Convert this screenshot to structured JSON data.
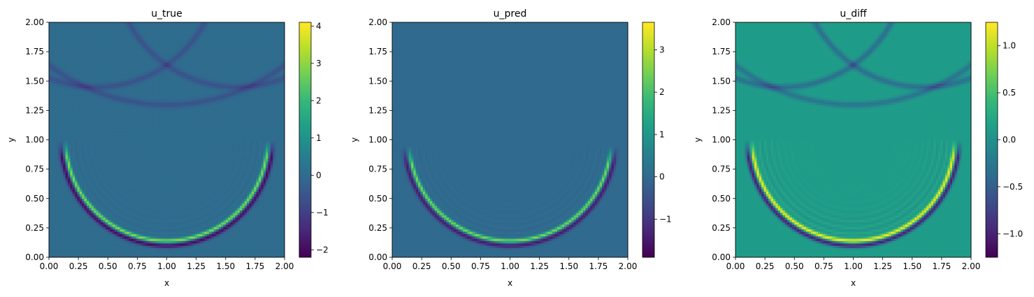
{
  "colors": {
    "viridis": [
      "#440154",
      "#482878",
      "#3e4a89",
      "#31688e",
      "#26828e",
      "#1f9e89",
      "#35b779",
      "#6ece58",
      "#b5de2b",
      "#fde725"
    ]
  },
  "chart_data": [
    {
      "type": "heatmap",
      "title": "u_true",
      "xlabel": "x",
      "ylabel": "y",
      "xlim": [
        0,
        2
      ],
      "ylim": [
        0,
        2
      ],
      "x_ticks": [
        "0.00",
        "0.25",
        "0.50",
        "0.75",
        "1.00",
        "1.25",
        "1.50",
        "1.75",
        "2.00"
      ],
      "y_ticks": [
        "0.00",
        "0.25",
        "0.50",
        "0.75",
        "1.00",
        "1.25",
        "1.50",
        "1.75",
        "2.00"
      ],
      "colormap": "viridis",
      "colorbar": {
        "min": -2.2,
        "max": 4.1,
        "ticks": [
          -2,
          -1,
          0,
          1,
          2,
          3,
          4
        ],
        "tick_labels": [
          "−2",
          "−1",
          "0",
          "1",
          "2",
          "3",
          "4"
        ]
      },
      "field": {
        "background": 0.0,
        "front": {
          "center": [
            1.0,
            1.0
          ],
          "radius": 0.87,
          "visible_below_y": 1.0,
          "peak": 3.0,
          "trough": -2.0
        },
        "faint_arc": {
          "center": [
            1.0,
            1.0
          ],
          "radius": 0.3,
          "value": -0.6
        },
        "reflections": [
          {
            "center": [
              0.4,
              2.5
            ],
            "radius": 1.05,
            "value": -0.6
          },
          {
            "center": [
              1.6,
              2.5
            ],
            "radius": 1.05,
            "value": -0.6
          },
          {
            "center": [
              1.0,
              2.95
            ],
            "radius": 1.65,
            "value": -0.6
          }
        ]
      }
    },
    {
      "type": "heatmap",
      "title": "u_pred",
      "xlabel": "x",
      "ylabel": "y",
      "xlim": [
        0,
        2
      ],
      "ylim": [
        0,
        2
      ],
      "x_ticks": [
        "0.00",
        "0.25",
        "0.50",
        "0.75",
        "1.00",
        "1.25",
        "1.50",
        "1.75",
        "2.00"
      ],
      "y_ticks": [
        "0.00",
        "0.25",
        "0.50",
        "0.75",
        "1.00",
        "1.25",
        "1.50",
        "1.75",
        "2.00"
      ],
      "colormap": "viridis",
      "colorbar": {
        "min": -1.9,
        "max": 3.65,
        "ticks": [
          -1,
          0,
          1,
          2,
          3
        ],
        "tick_labels": [
          "−1",
          "0",
          "1",
          "2",
          "3"
        ]
      },
      "field": {
        "background": 0.0,
        "front": {
          "center": [
            1.0,
            1.0
          ],
          "radius": 0.87,
          "visible_below_y": 0.95,
          "peak": 2.6,
          "trough": -1.5
        },
        "reflections": []
      }
    },
    {
      "type": "heatmap",
      "title": "u_diff",
      "xlabel": "x",
      "ylabel": "y",
      "xlim": [
        0,
        2
      ],
      "ylim": [
        0,
        2
      ],
      "x_ticks": [
        "0.00",
        "0.25",
        "0.50",
        "0.75",
        "1.00",
        "1.25",
        "1.50",
        "1.75",
        "2.00"
      ],
      "y_ticks": [
        "0.00",
        "0.25",
        "0.50",
        "0.75",
        "1.00",
        "1.25",
        "1.50",
        "1.75",
        "2.00"
      ],
      "colormap": "viridis",
      "colorbar": {
        "min": -1.25,
        "max": 1.25,
        "ticks": [
          -1.0,
          -0.5,
          0.0,
          0.5,
          1.0
        ],
        "tick_labels": [
          "−1.0",
          "−0.5",
          "0.0",
          "0.5",
          "1.0"
        ]
      },
      "field": {
        "background": 0.12,
        "front": {
          "center": [
            1.0,
            1.0
          ],
          "radius": 0.87,
          "visible_below_y": 1.0,
          "peak": 1.1,
          "trough": -1.15
        },
        "faint_arc": {
          "center": [
            1.0,
            1.0
          ],
          "radius": 0.3,
          "value": 0.25
        },
        "reflections": [
          {
            "center": [
              0.4,
              2.5
            ],
            "radius": 1.05,
            "value": -0.45
          },
          {
            "center": [
              1.6,
              2.5
            ],
            "radius": 1.05,
            "value": -0.45
          },
          {
            "center": [
              1.0,
              2.95
            ],
            "radius": 1.65,
            "value": -0.4
          }
        ]
      }
    }
  ]
}
